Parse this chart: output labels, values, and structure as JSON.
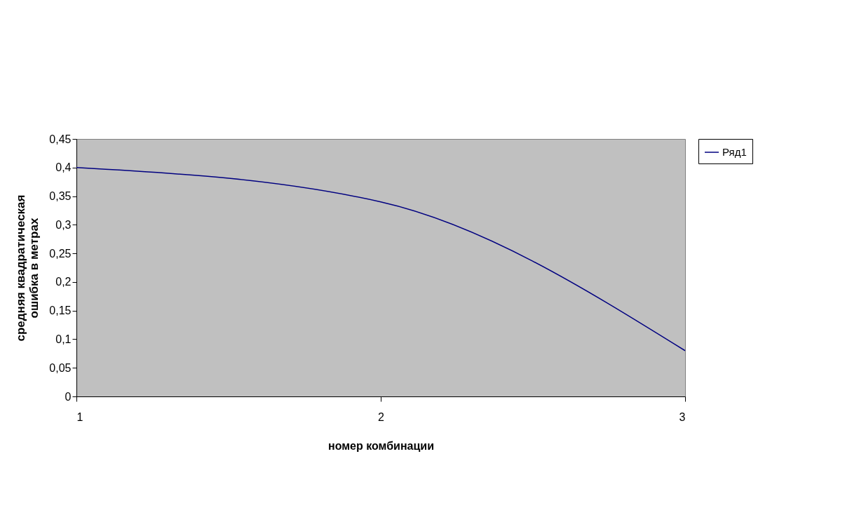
{
  "chart_data": {
    "type": "line",
    "xlabel": "номер комбинации",
    "ylabel": "средняя квадратическая\nошибка в метрах",
    "x": [
      1,
      2,
      3
    ],
    "series": [
      {
        "name": "Ряд1",
        "color": "#000080",
        "values": [
          0.4,
          0.34,
          0.08
        ]
      }
    ],
    "xlim": [
      1,
      3
    ],
    "xticks": [
      1,
      2,
      3
    ],
    "ylim": [
      0,
      0.45
    ],
    "yticks": [
      0,
      {
        "value": 0.05,
        "label": "0,05"
      },
      {
        "value": 0.1,
        "label": "0,1"
      },
      {
        "value": 0.15,
        "label": "0,15"
      },
      {
        "value": 0.2,
        "label": "0,2"
      },
      {
        "value": 0.25,
        "label": "0,25"
      },
      {
        "value": 0.3,
        "label": "0,3"
      },
      {
        "value": 0.35,
        "label": "0,35"
      },
      {
        "value": 0.4,
        "label": "0,4"
      },
      {
        "value": 0.45,
        "label": "0,45"
      }
    ],
    "grid": false,
    "legend": "right",
    "marker": "none",
    "line_style": "solid"
  }
}
